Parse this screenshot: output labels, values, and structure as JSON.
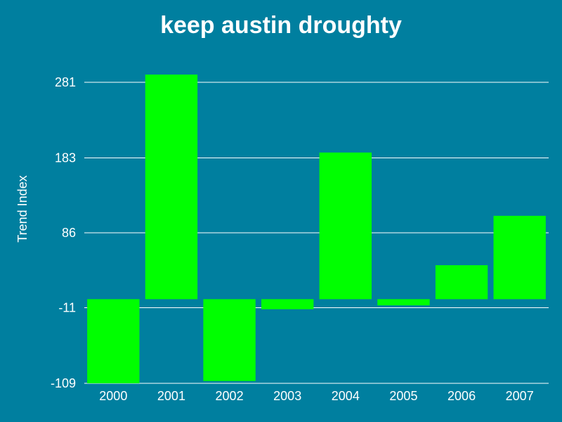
{
  "chart_data": {
    "type": "bar",
    "title": "keep austin droughty",
    "xlabel": "",
    "ylabel": "Trend Index",
    "categories": [
      "2000",
      "2001",
      "2002",
      "2003",
      "2004",
      "2005",
      "2006",
      "2007"
    ],
    "values": [
      -109,
      291,
      -106,
      -13,
      190,
      -8,
      44,
      108
    ],
    "yticks": [
      -109,
      -11,
      86,
      183,
      281
    ],
    "ylim": [
      -109,
      281
    ],
    "grid": true,
    "legend": "none",
    "colors": {
      "background": "#007F9F",
      "bar": "#00FF00",
      "grid": "#FFFFFF",
      "text": "#FFFFFF"
    }
  }
}
